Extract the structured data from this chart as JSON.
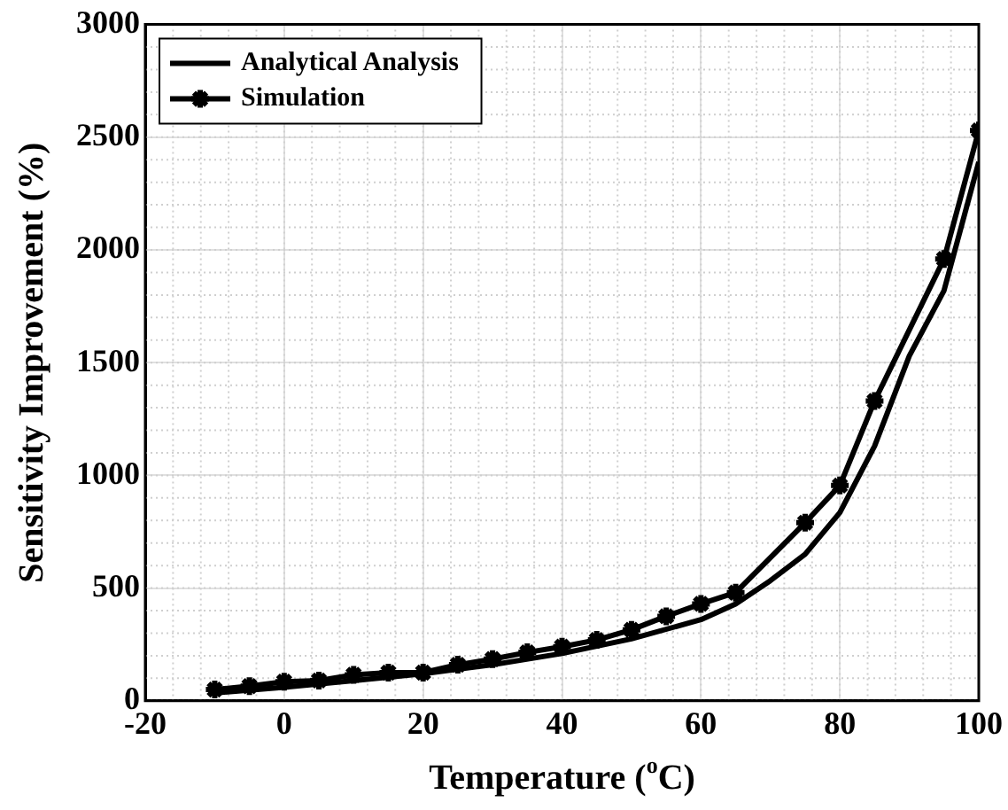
{
  "chart_data": {
    "type": "line",
    "xlabel": "Temperature ($^{o}$C)",
    "ylabel": "Sensitivity Improvement (%)",
    "xlim": [
      -20,
      100
    ],
    "xticks": [
      -20,
      0,
      20,
      40,
      60,
      80,
      100
    ],
    "ylim": [
      0,
      3000
    ],
    "yticks": [
      0,
      500,
      1000,
      1500,
      2000,
      2500,
      3000
    ],
    "grid": true,
    "legend": "top left",
    "series": [
      {
        "name": "Analytical Analysis",
        "color": "#000000",
        "marker": "none",
        "x": [
          -10,
          0,
          10,
          20,
          30,
          40,
          50,
          60,
          65,
          70,
          75,
          80,
          85,
          90,
          95,
          100
        ],
        "values": [
          35,
          60,
          90,
          120,
          160,
          210,
          275,
          360,
          430,
          533,
          650,
          835,
          1130,
          1530,
          1820,
          2390
        ]
      },
      {
        "name": "Simulation",
        "color": "#000000",
        "marker": "cross",
        "x": [
          -10,
          -5,
          0,
          5,
          10,
          15,
          20,
          25,
          30,
          35,
          40,
          45,
          50,
          55,
          60,
          65,
          75,
          80,
          85,
          95,
          100
        ],
        "values": [
          50,
          65,
          85,
          90,
          115,
          125,
          125,
          160,
          185,
          215,
          240,
          270,
          315,
          375,
          430,
          480,
          790,
          955,
          1330,
          1960,
          2530
        ]
      }
    ]
  }
}
